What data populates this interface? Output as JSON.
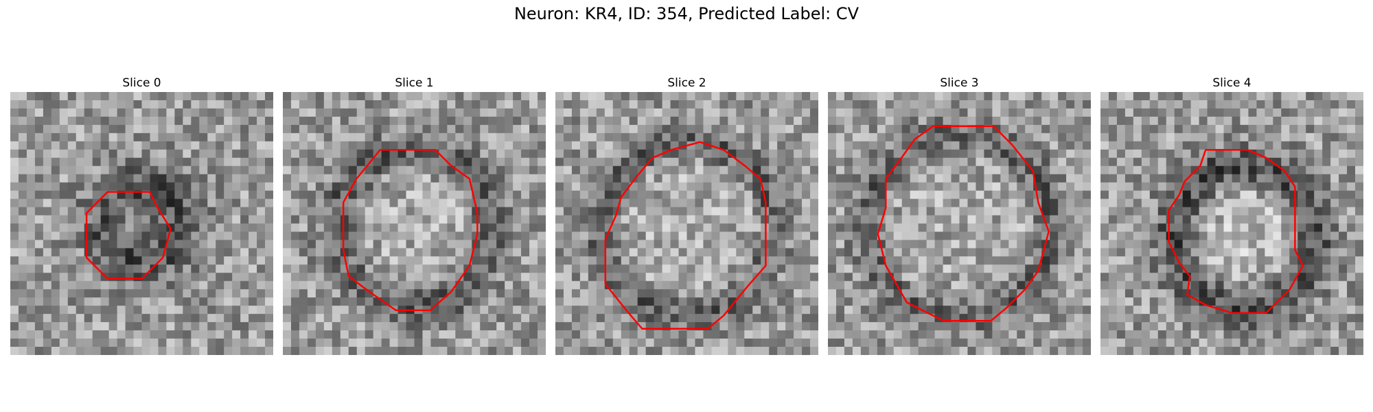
{
  "title": "Neuron: KR4, ID: 354, Predicted Label: CV",
  "panels": [
    {
      "title": "Slice 0",
      "image": "noisy grayscale microscopy patch",
      "contour_color": "#ff0000"
    },
    {
      "title": "Slice 1",
      "image": "noisy grayscale microscopy patch",
      "contour_color": "#ff0000"
    },
    {
      "title": "Slice 2",
      "image": "noisy grayscale microscopy patch",
      "contour_color": "#ff0000"
    },
    {
      "title": "Slice 3",
      "image": "noisy grayscale microscopy patch",
      "contour_color": "#ff0000"
    },
    {
      "title": "Slice 4",
      "image": "noisy grayscale microscopy patch",
      "contour_color": "#ff0000"
    }
  ]
}
